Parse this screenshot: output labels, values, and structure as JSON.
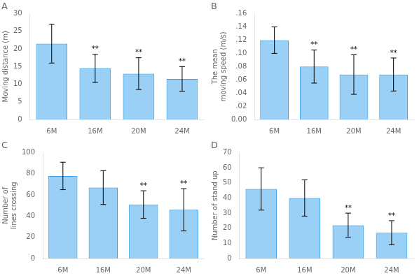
{
  "chart_data": [
    {
      "type": "bar",
      "title": "A",
      "y_label": "Moving distance (m)",
      "categories": [
        "6M",
        "16M",
        "20M",
        "24M"
      ],
      "values": [
        21.5,
        14.5,
        13.0,
        11.5
      ],
      "errors": [
        5.5,
        4.0,
        4.5,
        3.5
      ],
      "ylim": [
        0,
        30
      ],
      "yticks": [
        0,
        5,
        10,
        15,
        20,
        25,
        30
      ],
      "grid": false,
      "annotations": [
        {
          "x": "16M",
          "text": "**"
        },
        {
          "x": "20M",
          "text": "**"
        },
        {
          "x": "24M",
          "text": "**"
        }
      ]
    },
    {
      "type": "bar",
      "title": "B",
      "y_label": "The mean\nmoving speed (m/s)",
      "categories": [
        "6M",
        "16M",
        "20M",
        "24M"
      ],
      "values": [
        0.12,
        0.08,
        0.068,
        0.068
      ],
      "errors": [
        0.02,
        0.025,
        0.03,
        0.025
      ],
      "ylim": [
        0.0,
        0.16
      ],
      "yticks": [
        {
          "value": 0.0,
          "label": "0.00"
        },
        {
          "value": 0.02,
          "label": ".02"
        },
        {
          "value": 0.04,
          "label": ".04"
        },
        {
          "value": 0.06,
          "label": ".06"
        },
        {
          "value": 0.08,
          "label": ".08"
        },
        {
          "value": 0.1,
          "label": ".10"
        },
        {
          "value": 0.12,
          "label": ".12"
        },
        {
          "value": 0.14,
          "label": ".14"
        },
        {
          "value": 0.16,
          "label": ".16"
        }
      ],
      "grid": false,
      "annotations": [
        {
          "x": "16M",
          "text": "**"
        },
        {
          "x": "20M",
          "text": "**"
        },
        {
          "x": "24M",
          "text": "**"
        }
      ]
    },
    {
      "type": "bar",
      "title": "C",
      "y_label": "Number of\nlines crossing",
      "categories": [
        "6M",
        "16M",
        "20M",
        "24M"
      ],
      "values": [
        78,
        67,
        51,
        46
      ],
      "errors": [
        13,
        16,
        13,
        20
      ],
      "ylim": [
        0,
        100
      ],
      "yticks": [
        0,
        20,
        40,
        60,
        80,
        100
      ],
      "grid": false,
      "annotations": [
        {
          "x": "20M",
          "text": "**"
        },
        {
          "x": "24M",
          "text": "**"
        }
      ]
    },
    {
      "type": "bar",
      "title": "D",
      "y_label": "Number of stand up",
      "categories": [
        "6M",
        "16M",
        "20M",
        "24M"
      ],
      "values": [
        46,
        40,
        22,
        17
      ],
      "errors": [
        14,
        12,
        8,
        8
      ],
      "ylim": [
        0,
        70
      ],
      "yticks": [
        0,
        10,
        20,
        30,
        40,
        50,
        60,
        70
      ],
      "grid": false,
      "annotations": [
        {
          "x": "20M",
          "text": "**"
        },
        {
          "x": "24M",
          "text": "**"
        }
      ]
    }
  ]
}
